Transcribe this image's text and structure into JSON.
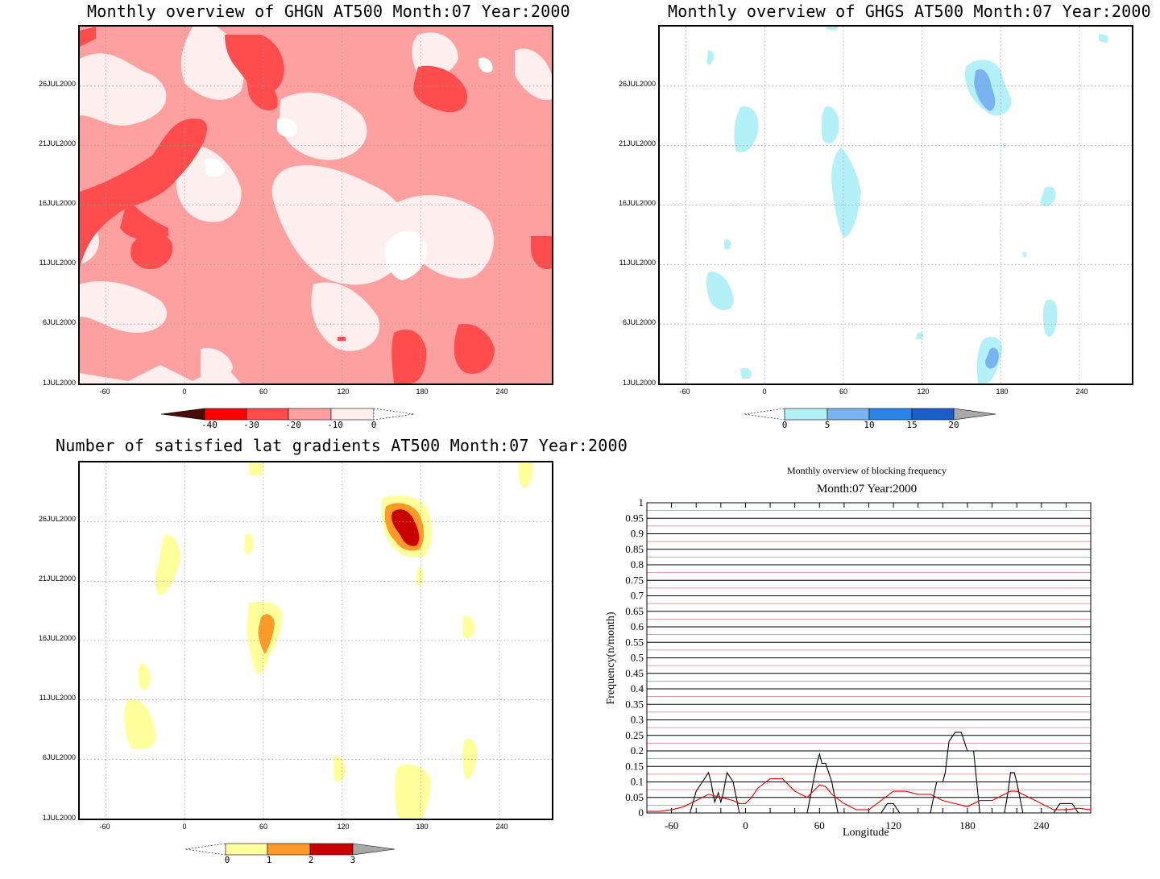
{
  "panels": {
    "ghgn": {
      "title": "Monthly overview of GHGN AT500 Month:07 Year:2000",
      "yticks": [
        "26JUL2000",
        "21JUL2000",
        "16JUL2000",
        "11JUL2000",
        "6JUL2000",
        "1JUL2000"
      ],
      "xticks": [
        "-60",
        "0",
        "60",
        "120",
        "180",
        "240"
      ],
      "colorbar": {
        "labels": [
          "-40",
          "-30",
          "-20",
          "-10",
          "0"
        ],
        "colors": [
          "#4a0a0a",
          "#ff0000",
          "#ff4d4d",
          "#ffa0a0",
          "#ffeeee",
          "#ffffff"
        ]
      }
    },
    "ghgs": {
      "title": "Monthly overview of GHGS AT500 Month:07 Year:2000",
      "yticks": [
        "26JUL2000",
        "21JUL2000",
        "16JUL2000",
        "11JUL2000",
        "6JUL2000",
        "1JUL2000"
      ],
      "xticks": [
        "-60",
        "0",
        "60",
        "120",
        "180",
        "240"
      ],
      "colorbar": {
        "labels": [
          "0",
          "5",
          "10",
          "15",
          "20"
        ],
        "colors": [
          "#ffffff",
          "#b4f0f8",
          "#7ab4f0",
          "#2a84e6",
          "#1a5ec8",
          "#a8a8a8"
        ]
      }
    },
    "grad": {
      "title": "Number of satisfied lat gradients AT500 Month:07 Year:2000",
      "yticks": [
        "26JUL2000",
        "21JUL2000",
        "16JUL2000",
        "11JUL2000",
        "6JUL2000",
        "1JUL2000"
      ],
      "xticks": [
        "-60",
        "0",
        "60",
        "120",
        "180",
        "240"
      ],
      "colorbar": {
        "labels": [
          "0",
          "1",
          "2",
          "3"
        ],
        "colors": [
          "#ffffff",
          "#ffff9c",
          "#ff9a28",
          "#c80000",
          "#a8a8a8"
        ]
      }
    },
    "freq": {
      "title": "Monthly overview of blocking frequency",
      "subtitle": "Month:07 Year:2000",
      "xlabel": "Longitude",
      "ylabel": "Frequency(n/month)"
    }
  },
  "chart_data": [
    {
      "type": "heatmap",
      "title": "Monthly overview of GHGN AT500 Month:07 Year:2000",
      "x_range": [
        -80,
        280
      ],
      "y_range": [
        "1JUL2000",
        "31JUL2000"
      ],
      "x_ticks": [
        -60,
        0,
        60,
        120,
        180,
        240
      ],
      "levels": [
        -40,
        -30,
        -20,
        -10,
        0
      ],
      "grid": true
    },
    {
      "type": "heatmap",
      "title": "Monthly overview of GHGS AT500 Month:07 Year:2000",
      "x_range": [
        -80,
        280
      ],
      "y_range": [
        "1JUL2000",
        "31JUL2000"
      ],
      "x_ticks": [
        -60,
        0,
        60,
        120,
        180,
        240
      ],
      "levels": [
        0,
        5,
        10,
        15,
        20
      ],
      "grid": true
    },
    {
      "type": "heatmap",
      "title": "Number of satisfied lat gradients AT500 Month:07 Year:2000",
      "x_range": [
        -80,
        280
      ],
      "y_range": [
        "1JUL2000",
        "31JUL2000"
      ],
      "x_ticks": [
        -60,
        0,
        60,
        120,
        180,
        240
      ],
      "levels": [
        0,
        1,
        2,
        3
      ],
      "grid": true
    },
    {
      "type": "line",
      "title": "Monthly overview of blocking frequency",
      "subtitle": "Month:07 Year:2000",
      "xlabel": "Longitude",
      "ylabel": "Frequency(n/month)",
      "xlim": [
        -80,
        280
      ],
      "ylim": [
        0,
        1
      ],
      "x_ticks": [
        -60,
        0,
        60,
        120,
        180,
        240
      ],
      "y_ticks": [
        "0",
        "0.05",
        "0.1",
        "0.15",
        "0.2",
        "0.25",
        "0.3",
        "0.35",
        "0.4",
        "0.45",
        "0.5",
        "0.55",
        "0.6",
        "0.65",
        "0.7",
        "0.75",
        "0.8",
        "0.85",
        "0.9",
        "0.95",
        "1"
      ],
      "grid": true,
      "series": [
        {
          "color": "#000000",
          "x": [
            -80,
            -45,
            -40,
            -35,
            -30,
            -28,
            -25,
            -22,
            -20,
            -18,
            -15,
            -10,
            -8,
            -5,
            0,
            10,
            20,
            30,
            45,
            50,
            55,
            58,
            60,
            62,
            65,
            70,
            72,
            75,
            80,
            100,
            110,
            115,
            120,
            125,
            150,
            155,
            160,
            162,
            165,
            170,
            175,
            180,
            185,
            190,
            200,
            210,
            213,
            215,
            218,
            220,
            225,
            230,
            240,
            250,
            255,
            260,
            265,
            270,
            280
          ],
          "y": [
            0,
            0,
            0.07,
            0.1,
            0.13,
            0.1,
            0.035,
            0.065,
            0.035,
            0.065,
            0.13,
            0.1,
            0.06,
            0,
            0,
            0,
            0,
            0,
            0,
            0,
            0.1,
            0.16,
            0.19,
            0.16,
            0.16,
            0.1,
            0.06,
            0,
            0,
            0,
            0,
            0.03,
            0.03,
            0,
            0,
            0.1,
            0.1,
            0.13,
            0.23,
            0.26,
            0.26,
            0.2,
            0.2,
            0,
            0,
            0,
            0.07,
            0.13,
            0.13,
            0.1,
            0,
            0,
            0,
            0,
            0.03,
            0.03,
            0.03,
            0,
            0
          ]
        },
        {
          "color": "#e00000",
          "x": [
            -80,
            -70,
            -60,
            -50,
            -40,
            -30,
            -20,
            -10,
            -5,
            0,
            5,
            10,
            20,
            30,
            40,
            50,
            55,
            60,
            65,
            70,
            75,
            80,
            90,
            100,
            110,
            120,
            125,
            130,
            140,
            150,
            160,
            170,
            180,
            190,
            200,
            210,
            215,
            220,
            230,
            240,
            250,
            260,
            270,
            280
          ],
          "y": [
            0.005,
            0.005,
            0.01,
            0.02,
            0.04,
            0.06,
            0.05,
            0.04,
            0.03,
            0.03,
            0.05,
            0.08,
            0.11,
            0.11,
            0.07,
            0.05,
            0.07,
            0.09,
            0.085,
            0.06,
            0.045,
            0.03,
            0.01,
            0.01,
            0.04,
            0.07,
            0.07,
            0.07,
            0.06,
            0.06,
            0.04,
            0.03,
            0.02,
            0.04,
            0.04,
            0.06,
            0.07,
            0.07,
            0.05,
            0.03,
            0.01,
            0.01,
            0.015,
            0.01
          ]
        }
      ]
    }
  ]
}
